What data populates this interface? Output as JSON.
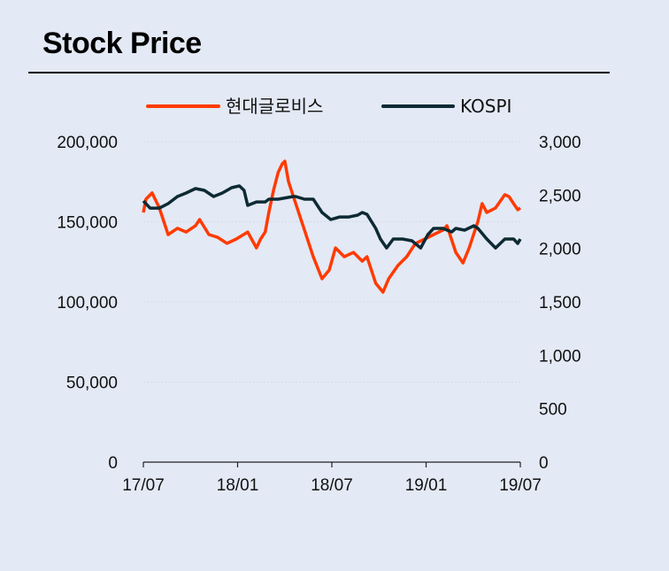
{
  "chart_data": {
    "type": "line",
    "title": "Stock Price",
    "legend_placement": "top",
    "grid": true,
    "xlim": [
      "2017-07-01",
      "2019-07-01"
    ],
    "x_ticks": [
      "17/07",
      "18/01",
      "18/07",
      "19/01",
      "19/07"
    ],
    "y_left": {
      "lim": [
        0,
        200000
      ],
      "ticks": [
        "0",
        "50,000",
        "100,000",
        "150,000",
        "200,000"
      ]
    },
    "y_right": {
      "lim": [
        0,
        3000
      ],
      "ticks": [
        "0",
        "500",
        "1,000",
        "1,500",
        "2,000",
        "2,500",
        "3,000"
      ]
    },
    "series": [
      {
        "name": "현대글로비스",
        "axis": "left",
        "color": "#ff3a00",
        "points": [
          [
            "2017-07-01",
            155800
          ],
          [
            "2017-07-06",
            164100
          ],
          [
            "2017-07-18",
            168000
          ],
          [
            "2017-08-01",
            158600
          ],
          [
            "2017-08-18",
            142000
          ],
          [
            "2017-09-05",
            145900
          ],
          [
            "2017-09-22",
            143600
          ],
          [
            "2017-10-10",
            147500
          ],
          [
            "2017-10-18",
            151400
          ],
          [
            "2017-11-05",
            142000
          ],
          [
            "2017-11-22",
            140300
          ],
          [
            "2017-12-10",
            136500
          ],
          [
            "2017-12-28",
            139200
          ],
          [
            "2018-01-19",
            143600
          ],
          [
            "2018-02-05",
            133700
          ],
          [
            "2018-02-13",
            139200
          ],
          [
            "2018-02-22",
            143600
          ],
          [
            "2018-03-01",
            155800
          ],
          [
            "2018-03-10",
            169600
          ],
          [
            "2018-03-19",
            180700
          ],
          [
            "2018-03-27",
            186200
          ],
          [
            "2018-04-01",
            187800
          ],
          [
            "2018-04-08",
            175100
          ],
          [
            "2018-04-22",
            161300
          ],
          [
            "2018-05-09",
            144800
          ],
          [
            "2018-05-26",
            128200
          ],
          [
            "2018-06-12",
            114400
          ],
          [
            "2018-06-26",
            119900
          ],
          [
            "2018-07-08",
            133700
          ],
          [
            "2018-07-25",
            128200
          ],
          [
            "2018-08-12",
            130900
          ],
          [
            "2018-08-29",
            125400
          ],
          [
            "2018-09-07",
            128200
          ],
          [
            "2018-09-24",
            111600
          ],
          [
            "2018-10-08",
            106100
          ],
          [
            "2018-10-19",
            114400
          ],
          [
            "2018-11-06",
            122700
          ],
          [
            "2018-11-23",
            128200
          ],
          [
            "2018-12-10",
            136500
          ],
          [
            "2018-12-28",
            139200
          ],
          [
            "2019-01-14",
            142000
          ],
          [
            "2019-02-01",
            144800
          ],
          [
            "2019-02-09",
            147500
          ],
          [
            "2019-02-26",
            130900
          ],
          [
            "2019-03-12",
            124300
          ],
          [
            "2019-03-24",
            133700
          ],
          [
            "2019-04-10",
            150300
          ],
          [
            "2019-04-18",
            161300
          ],
          [
            "2019-04-27",
            155800
          ],
          [
            "2019-05-14",
            158600
          ],
          [
            "2019-06-01",
            166900
          ],
          [
            "2019-06-09",
            165700
          ],
          [
            "2019-06-18",
            161300
          ],
          [
            "2019-06-26",
            157500
          ],
          [
            "2019-07-01",
            158600
          ]
        ]
      },
      {
        "name": "KOSPI",
        "axis": "right",
        "color": "#0d2a33",
        "points": [
          [
            "2017-07-01",
            2445
          ],
          [
            "2017-07-14",
            2378
          ],
          [
            "2017-08-01",
            2378
          ],
          [
            "2017-08-18",
            2420
          ],
          [
            "2017-09-05",
            2486
          ],
          [
            "2017-09-22",
            2519
          ],
          [
            "2017-10-10",
            2561
          ],
          [
            "2017-10-27",
            2544
          ],
          [
            "2017-11-14",
            2486
          ],
          [
            "2017-12-01",
            2519
          ],
          [
            "2017-12-19",
            2569
          ],
          [
            "2018-01-03",
            2586
          ],
          [
            "2018-01-12",
            2544
          ],
          [
            "2018-01-19",
            2403
          ],
          [
            "2018-02-05",
            2436
          ],
          [
            "2018-02-22",
            2436
          ],
          [
            "2018-03-01",
            2461
          ],
          [
            "2018-03-19",
            2461
          ],
          [
            "2018-04-17",
            2486
          ],
          [
            "2018-04-22",
            2486
          ],
          [
            "2018-05-09",
            2461
          ],
          [
            "2018-05-26",
            2461
          ],
          [
            "2018-06-12",
            2337
          ],
          [
            "2018-06-29",
            2271
          ],
          [
            "2018-07-16",
            2295
          ],
          [
            "2018-08-03",
            2295
          ],
          [
            "2018-08-20",
            2312
          ],
          [
            "2018-08-29",
            2337
          ],
          [
            "2018-09-07",
            2320
          ],
          [
            "2018-09-24",
            2188
          ],
          [
            "2018-10-03",
            2088
          ],
          [
            "2018-10-15",
            2005
          ],
          [
            "2018-10-28",
            2088
          ],
          [
            "2018-11-15",
            2088
          ],
          [
            "2018-12-03",
            2072
          ],
          [
            "2018-12-20",
            2005
          ],
          [
            "2019-01-03",
            2130
          ],
          [
            "2019-01-14",
            2188
          ],
          [
            "2019-02-01",
            2188
          ],
          [
            "2019-02-18",
            2155
          ],
          [
            "2019-02-26",
            2188
          ],
          [
            "2019-03-15",
            2171
          ],
          [
            "2019-04-02",
            2213
          ],
          [
            "2019-04-10",
            2188
          ],
          [
            "2019-04-27",
            2088
          ],
          [
            "2019-05-14",
            2005
          ],
          [
            "2019-06-01",
            2088
          ],
          [
            "2019-06-18",
            2088
          ],
          [
            "2019-06-26",
            2047
          ],
          [
            "2019-07-01",
            2088
          ]
        ]
      }
    ]
  }
}
